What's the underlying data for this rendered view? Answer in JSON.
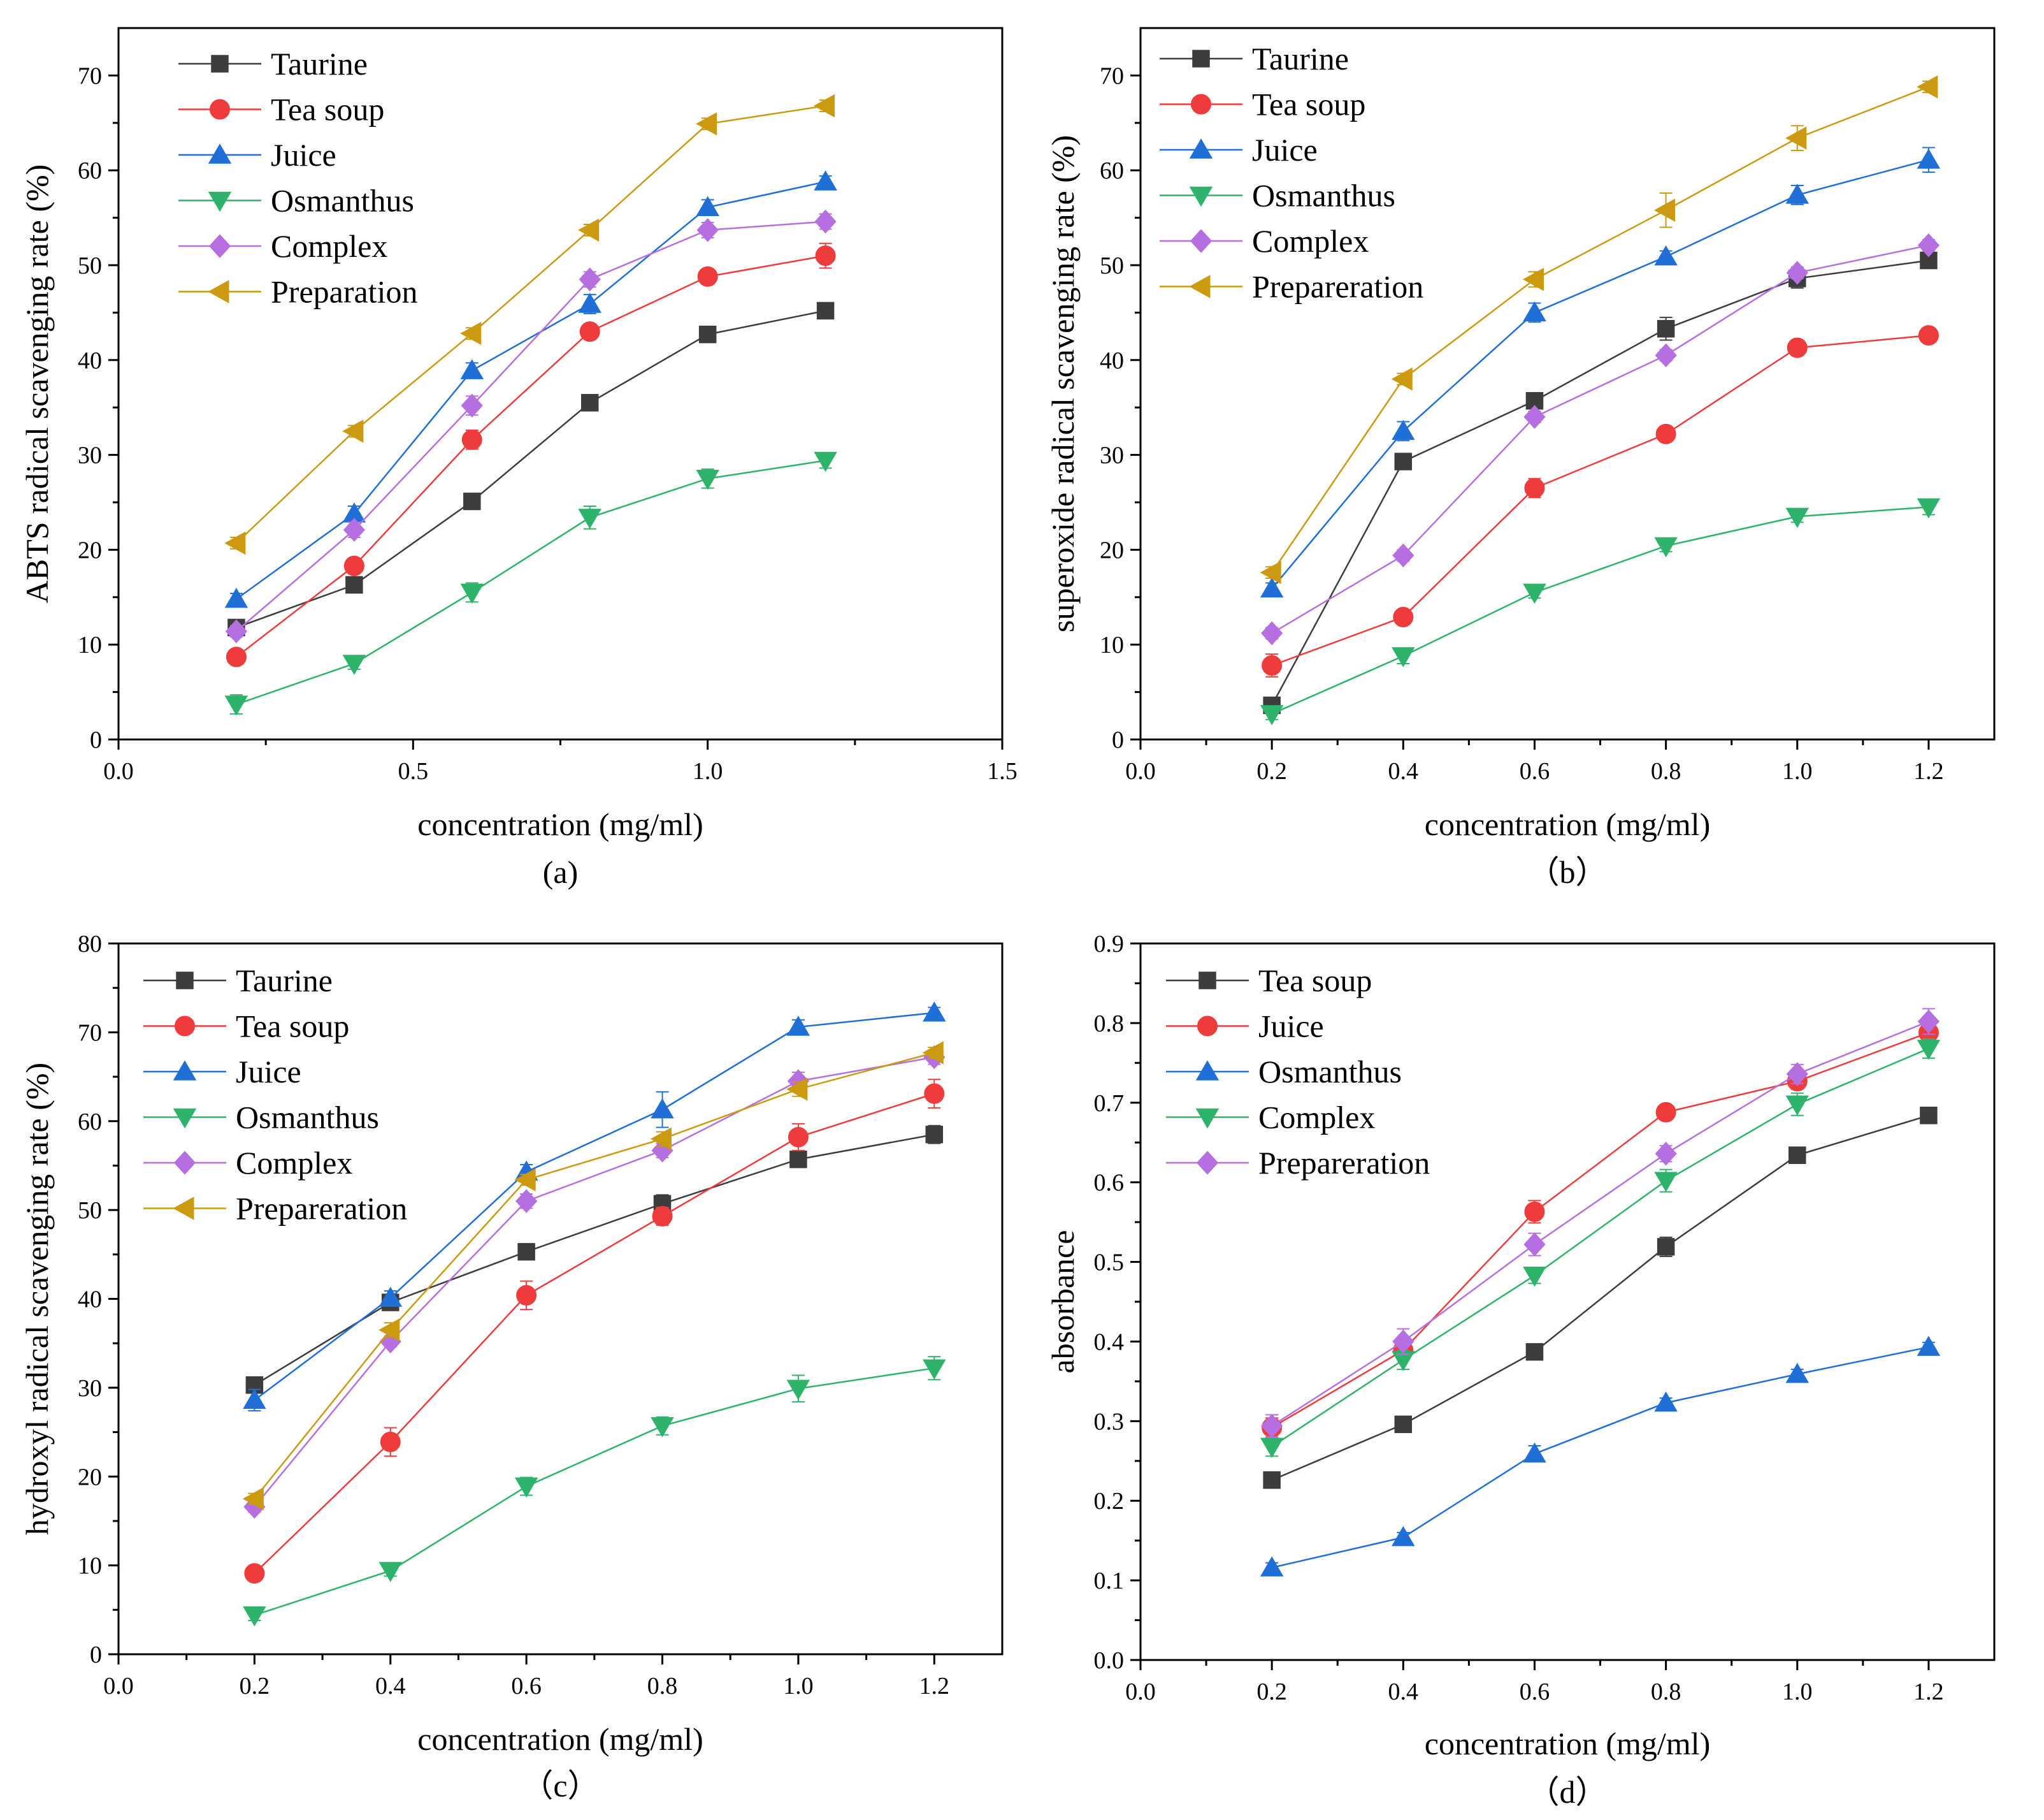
{
  "chart_data": [
    {
      "id": "a",
      "type": "line",
      "caption": "(a)",
      "xlabel": "concentration (mg/ml)",
      "ylabel": "ABTS radical scavenging rate (%)",
      "xlim": [
        0.0,
        1.5
      ],
      "ylim": [
        0,
        75
      ],
      "xticks": [
        0.0,
        0.5,
        1.0,
        1.5
      ],
      "xtick_labels": [
        "0.0",
        "0.5",
        "1.0",
        "1.5"
      ],
      "yticks": [
        0,
        10,
        20,
        30,
        40,
        50,
        60,
        70
      ],
      "ytick_labels": [
        "0",
        "10",
        "20",
        "30",
        "40",
        "50",
        "60",
        "70"
      ],
      "grid": false,
      "legend_position": "top-left",
      "x": [
        0.2,
        0.4,
        0.6,
        0.8,
        1.0,
        1.2
      ],
      "series": [
        {
          "name": "Taurine",
          "color": "#3d3d3d",
          "marker": "square",
          "values": [
            11.8,
            16.3,
            25.1,
            35.5,
            42.7,
            45.2
          ],
          "errors": [
            0.5,
            0.6,
            0.6,
            0.6,
            0.6,
            0.6
          ]
        },
        {
          "name": "Tea soup",
          "color": "#ee3b3b",
          "marker": "circle",
          "values": [
            8.7,
            18.3,
            31.6,
            43.0,
            48.8,
            51.0
          ],
          "errors": [
            0.6,
            0.8,
            1.0,
            0.8,
            0.8,
            1.3
          ]
        },
        {
          "name": "Juice",
          "color": "#1f6fd6",
          "marker": "triangle-up",
          "values": [
            14.8,
            23.8,
            38.9,
            45.9,
            56.1,
            58.8
          ],
          "errors": [
            0.6,
            0.8,
            0.8,
            1.0,
            0.8,
            0.6
          ]
        },
        {
          "name": "Osmanthus",
          "color": "#2db36a",
          "marker": "triangle-down",
          "values": [
            3.7,
            8.0,
            15.5,
            23.4,
            27.5,
            29.4
          ],
          "errors": [
            1.0,
            0.6,
            1.0,
            1.2,
            1.0,
            0.8
          ]
        },
        {
          "name": "Complex",
          "color": "#b56fe0",
          "marker": "diamond",
          "values": [
            11.4,
            22.1,
            35.2,
            48.5,
            53.7,
            54.6
          ],
          "errors": [
            0.6,
            0.8,
            1.0,
            0.8,
            0.8,
            0.8
          ]
        },
        {
          "name": "Preparation",
          "color": "#cc9a10",
          "marker": "triangle-left",
          "values": [
            20.7,
            32.5,
            42.8,
            53.7,
            64.9,
            66.8
          ],
          "errors": [
            0.6,
            0.6,
            0.6,
            0.6,
            0.6,
            0.6
          ]
        }
      ]
    },
    {
      "id": "b",
      "type": "line",
      "caption": "（b）",
      "xlabel": "concentration (mg/ml)",
      "ylabel": "superoxide radical scavenging rate (%)",
      "xlim": [
        0.0,
        1.3
      ],
      "ylim": [
        0,
        75
      ],
      "xticks": [
        0.0,
        0.2,
        0.4,
        0.6,
        0.8,
        1.0,
        1.2
      ],
      "xtick_labels": [
        "0.0",
        "0.2",
        "0.4",
        "0.6",
        "0.8",
        "1.0",
        "1.2"
      ],
      "yticks": [
        0,
        10,
        20,
        30,
        40,
        50,
        60,
        70
      ],
      "ytick_labels": [
        "0",
        "10",
        "20",
        "30",
        "40",
        "50",
        "60",
        "70"
      ],
      "grid": false,
      "legend_position": "top-left",
      "x": [
        0.2,
        0.4,
        0.6,
        0.8,
        1.0,
        1.2
      ],
      "series": [
        {
          "name": "Taurine",
          "color": "#3d3d3d",
          "marker": "square",
          "values": [
            3.6,
            29.3,
            35.7,
            43.3,
            48.6,
            50.5
          ],
          "errors": [
            0.5,
            0.8,
            0.8,
            1.2,
            1.0,
            0.8
          ]
        },
        {
          "name": "Tea soup",
          "color": "#ee3b3b",
          "marker": "circle",
          "values": [
            7.8,
            12.9,
            26.5,
            32.2,
            41.3,
            42.6
          ],
          "errors": [
            1.2,
            0.6,
            1.0,
            0.8,
            0.8,
            0.6
          ]
        },
        {
          "name": "Juice",
          "color": "#1f6fd6",
          "marker": "triangle-up",
          "values": [
            15.9,
            32.5,
            45.0,
            50.9,
            57.4,
            61.1
          ],
          "errors": [
            0.6,
            1.0,
            1.0,
            0.6,
            1.0,
            1.3
          ]
        },
        {
          "name": "Osmanthus",
          "color": "#2db36a",
          "marker": "triangle-down",
          "values": [
            2.7,
            8.8,
            15.5,
            20.4,
            23.5,
            24.5
          ],
          "errors": [
            0.6,
            0.8,
            0.6,
            0.6,
            0.6,
            0.8
          ]
        },
        {
          "name": "Complex",
          "color": "#b56fe0",
          "marker": "diamond",
          "values": [
            11.2,
            19.4,
            34.0,
            40.5,
            49.2,
            52.1
          ],
          "errors": [
            0.6,
            0.6,
            0.6,
            0.6,
            0.6,
            0.6
          ]
        },
        {
          "name": "Prepareration",
          "color": "#cc9a10",
          "marker": "triangle-left",
          "values": [
            17.6,
            38.0,
            48.5,
            55.8,
            63.4,
            68.8
          ],
          "errors": [
            0.6,
            0.6,
            0.8,
            1.8,
            1.3,
            0.6
          ]
        }
      ]
    },
    {
      "id": "c",
      "type": "line",
      "caption": "（c）",
      "xlabel": "concentration (mg/ml)",
      "ylabel": "hydroxyl radical scavenging rate (%)",
      "xlim": [
        0.0,
        1.3
      ],
      "ylim": [
        0,
        80
      ],
      "xticks": [
        0.0,
        0.2,
        0.4,
        0.6,
        0.8,
        1.0,
        1.2
      ],
      "xtick_labels": [
        "0.0",
        "0.2",
        "0.4",
        "0.6",
        "0.8",
        "1.0",
        "1.2"
      ],
      "yticks": [
        0,
        10,
        20,
        30,
        40,
        50,
        60,
        70,
        80
      ],
      "ytick_labels": [
        "0",
        "10",
        "20",
        "30",
        "40",
        "50",
        "60",
        "70",
        "80"
      ],
      "grid": false,
      "legend_position": "top-left",
      "x": [
        0.2,
        0.4,
        0.6,
        0.8,
        1.0,
        1.2
      ],
      "series": [
        {
          "name": "Taurine",
          "color": "#3d3d3d",
          "marker": "square",
          "values": [
            30.3,
            39.6,
            45.3,
            50.7,
            55.7,
            58.5
          ],
          "errors": [
            0.6,
            0.8,
            0.8,
            1.0,
            0.8,
            1.0
          ]
        },
        {
          "name": "Tea soup",
          "color": "#ee3b3b",
          "marker": "circle",
          "values": [
            9.1,
            23.9,
            40.4,
            49.3,
            58.2,
            63.1
          ],
          "errors": [
            0.8,
            1.6,
            1.6,
            1.0,
            1.5,
            1.6
          ]
        },
        {
          "name": "Juice",
          "color": "#1f6fd6",
          "marker": "triangle-up",
          "values": [
            28.6,
            40.1,
            54.3,
            61.3,
            70.6,
            72.2
          ],
          "errors": [
            1.2,
            0.8,
            0.8,
            2.0,
            0.8,
            0.6
          ]
        },
        {
          "name": "Osmanthus",
          "color": "#2db36a",
          "marker": "triangle-down",
          "values": [
            4.4,
            9.4,
            18.9,
            25.7,
            29.9,
            32.2
          ],
          "errors": [
            0.6,
            0.6,
            1.0,
            1.0,
            1.5,
            1.3
          ]
        },
        {
          "name": "Complex",
          "color": "#b56fe0",
          "marker": "diamond",
          "values": [
            16.6,
            35.2,
            51.0,
            56.7,
            64.5,
            67.2
          ],
          "errors": [
            0.6,
            0.6,
            0.8,
            0.8,
            1.0,
            0.8
          ]
        },
        {
          "name": "Prepareration",
          "color": "#cc9a10",
          "marker": "triangle-left",
          "values": [
            17.5,
            36.5,
            53.4,
            58.0,
            63.6,
            67.7
          ],
          "errors": [
            0.6,
            0.8,
            0.6,
            0.8,
            0.8,
            0.6
          ]
        }
      ]
    },
    {
      "id": "d",
      "type": "line",
      "caption": "（d）",
      "xlabel": "concentration (mg/ml)",
      "ylabel": "absorbance",
      "xlim": [
        0.0,
        1.3
      ],
      "ylim": [
        0.0,
        0.9
      ],
      "xticks": [
        0.0,
        0.2,
        0.4,
        0.6,
        0.8,
        1.0,
        1.2
      ],
      "xtick_labels": [
        "0.0",
        "0.2",
        "0.4",
        "0.6",
        "0.8",
        "1.0",
        "1.2"
      ],
      "yticks": [
        0.0,
        0.1,
        0.2,
        0.3,
        0.4,
        0.5,
        0.6,
        0.7,
        0.8,
        0.9
      ],
      "ytick_labels": [
        "0.0",
        "0.1",
        "0.2",
        "0.3",
        "0.4",
        "0.5",
        "0.6",
        "0.7",
        "0.8",
        "0.9"
      ],
      "grid": false,
      "legend_position": "top-left",
      "x": [
        0.2,
        0.4,
        0.6,
        0.8,
        1.0,
        1.2
      ],
      "series": [
        {
          "name": "Tea soup",
          "color": "#3d3d3d",
          "marker": "square",
          "values": [
            0.226,
            0.296,
            0.387,
            0.519,
            0.634,
            0.684
          ],
          "errors": [
            0.006,
            0.008,
            0.008,
            0.012,
            0.008,
            0.008
          ]
        },
        {
          "name": "Juice",
          "color": "#ee3b3b",
          "marker": "circle",
          "values": [
            0.292,
            0.389,
            0.563,
            0.688,
            0.727,
            0.788
          ],
          "errors": [
            0.012,
            0.012,
            0.014,
            0.008,
            0.01,
            0.012
          ]
        },
        {
          "name": "Osmanthus",
          "color": "#1f6fd6",
          "marker": "triangle-up",
          "values": [
            0.116,
            0.154,
            0.259,
            0.323,
            0.359,
            0.393
          ],
          "errors": [
            0.006,
            0.006,
            0.01,
            0.006,
            0.006,
            0.006
          ]
        },
        {
          "name": "Complex",
          "color": "#2db36a",
          "marker": "triangle-down",
          "values": [
            0.268,
            0.377,
            0.483,
            0.602,
            0.698,
            0.768
          ],
          "errors": [
            0.012,
            0.012,
            0.01,
            0.014,
            0.014,
            0.012
          ]
        },
        {
          "name": "Prepareration",
          "color": "#b56fe0",
          "marker": "diamond",
          "values": [
            0.294,
            0.4,
            0.522,
            0.636,
            0.736,
            0.802
          ],
          "errors": [
            0.014,
            0.016,
            0.014,
            0.01,
            0.012,
            0.016
          ]
        }
      ]
    }
  ]
}
